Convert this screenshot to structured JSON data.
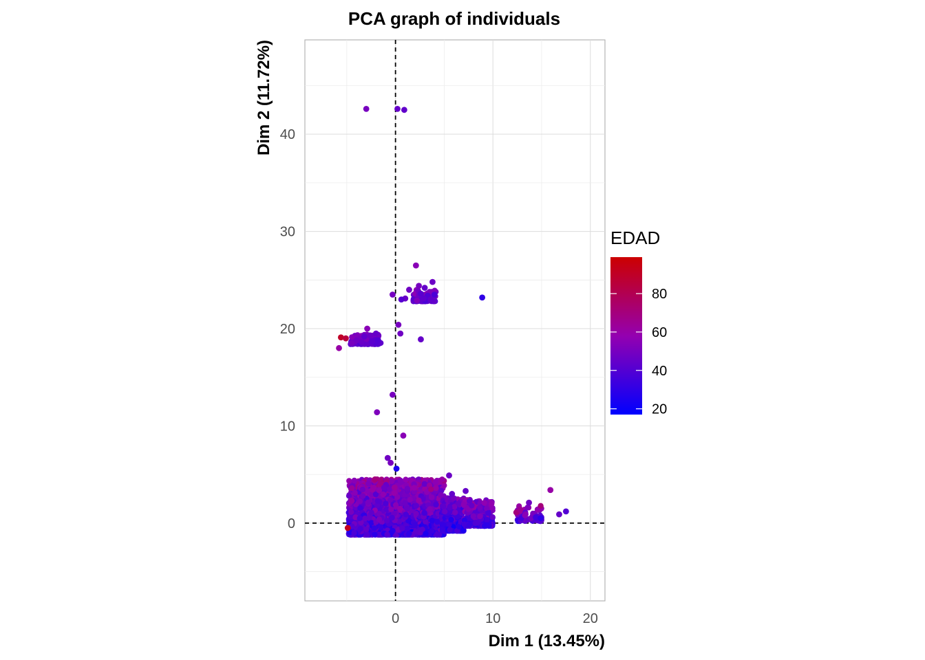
{
  "chart_data": {
    "type": "scatter",
    "title": "PCA graph of individuals",
    "xlabel": "Dim 1 (13.45%)",
    "ylabel": "Dim 2 (11.72%)",
    "xlim": [
      -9.3,
      21.5
    ],
    "ylim": [
      -8,
      49.7
    ],
    "xticks": [
      0,
      10,
      20
    ],
    "yticks": [
      0,
      10,
      20,
      30,
      40
    ],
    "grid": true,
    "reference_lines": {
      "x": 0,
      "y": 0,
      "style": "dashed"
    },
    "color_variable": "EDAD",
    "color_scale": {
      "low": "#0000ff",
      "high": "#cc0000",
      "min": 17,
      "max": 99
    },
    "legend": {
      "title": "EDAD",
      "position": "right",
      "ticks": [
        20,
        40,
        60,
        80
      ]
    },
    "points": [
      {
        "x": -3.0,
        "y": 42.6,
        "edad": 50
      },
      {
        "x": 0.2,
        "y": 42.6,
        "edad": 45
      },
      {
        "x": 0.9,
        "y": 42.5,
        "edad": 44
      },
      {
        "x": 2.1,
        "y": 26.5,
        "edad": 55
      },
      {
        "x": 1.4,
        "y": 24.0,
        "edad": 48
      },
      {
        "x": 2.4,
        "y": 24.4,
        "edad": 50
      },
      {
        "x": 3.0,
        "y": 24.2,
        "edad": 45
      },
      {
        "x": 3.8,
        "y": 24.8,
        "edad": 47
      },
      {
        "x": 2.6,
        "y": 23.6,
        "edad": 42
      },
      {
        "x": 3.3,
        "y": 23.4,
        "edad": 40
      },
      {
        "x": 4.0,
        "y": 23.5,
        "edad": 38
      },
      {
        "x": 2.2,
        "y": 22.9,
        "edad": 52
      },
      {
        "x": 3.6,
        "y": 23.0,
        "edad": 44
      },
      {
        "x": 1.0,
        "y": 23.1,
        "edad": 46
      },
      {
        "x": 0.6,
        "y": 23.0,
        "edad": 41
      },
      {
        "x": -0.3,
        "y": 23.5,
        "edad": 49
      },
      {
        "x": 2.9,
        "y": 23.1,
        "edad": 43
      },
      {
        "x": 8.9,
        "y": 23.2,
        "edad": 30
      },
      {
        "x": -5.6,
        "y": 19.1,
        "edad": 90
      },
      {
        "x": -5.1,
        "y": 19.0,
        "edad": 85
      },
      {
        "x": -5.8,
        "y": 18.0,
        "edad": 60
      },
      {
        "x": -4.5,
        "y": 18.5,
        "edad": 50
      },
      {
        "x": -4.0,
        "y": 18.8,
        "edad": 48
      },
      {
        "x": -3.5,
        "y": 18.6,
        "edad": 46
      },
      {
        "x": -3.2,
        "y": 19.2,
        "edad": 44
      },
      {
        "x": -2.9,
        "y": 20.0,
        "edad": 55
      },
      {
        "x": -2.4,
        "y": 18.7,
        "edad": 42
      },
      {
        "x": -2.0,
        "y": 19.5,
        "edad": 45
      },
      {
        "x": -1.8,
        "y": 18.8,
        "edad": 40
      },
      {
        "x": -2.6,
        "y": 19.3,
        "edad": 47
      },
      {
        "x": 0.3,
        "y": 20.4,
        "edad": 50
      },
      {
        "x": 0.5,
        "y": 19.5,
        "edad": 48
      },
      {
        "x": 2.6,
        "y": 18.9,
        "edad": 45
      },
      {
        "x": -0.3,
        "y": 13.2,
        "edad": 50
      },
      {
        "x": -1.9,
        "y": 11.4,
        "edad": 52
      },
      {
        "x": 0.8,
        "y": 9.0,
        "edad": 55
      },
      {
        "x": -0.8,
        "y": 6.7,
        "edad": 48
      },
      {
        "x": -0.5,
        "y": 6.2,
        "edad": 50
      },
      {
        "x": 0.1,
        "y": 5.6,
        "edad": 25
      },
      {
        "x": 5.5,
        "y": 4.9,
        "edad": 47
      },
      {
        "x": 5.8,
        "y": 3.0,
        "edad": 45
      },
      {
        "x": 7.2,
        "y": 3.3,
        "edad": 45
      },
      {
        "x": 15.9,
        "y": 3.4,
        "edad": 60
      },
      {
        "x": 13.7,
        "y": 2.1,
        "edad": 48
      },
      {
        "x": 17.5,
        "y": 1.2,
        "edad": 40
      },
      {
        "x": 16.8,
        "y": 0.9,
        "edad": 45
      },
      {
        "x": 12.4,
        "y": 1.1,
        "edad": 70
      },
      {
        "x": 12.8,
        "y": 1.4,
        "edad": 65
      },
      {
        "x": 13.3,
        "y": 0.8,
        "edad": 55
      },
      {
        "x": 14.4,
        "y": 0.6,
        "edad": 35
      },
      {
        "x": 14.9,
        "y": 0.5,
        "edad": 30
      },
      {
        "x": -4.9,
        "y": -0.5,
        "edad": 92
      },
      {
        "x": -4.5,
        "y": 2.3,
        "edad": 60
      },
      {
        "x": -2.1,
        "y": 4.5,
        "edad": 70
      }
    ],
    "clusters": [
      {
        "x_range": [
          -4.8,
          5.0
        ],
        "y_range": [
          -1.2,
          4.5
        ],
        "n": 2400,
        "edad_range": [
          18,
          75
        ]
      },
      {
        "x_range": [
          4.8,
          7.0
        ],
        "y_range": [
          -0.8,
          2.6
        ],
        "n": 500,
        "edad_range": [
          18,
          60
        ]
      },
      {
        "x_range": [
          7.0,
          10.0
        ],
        "y_range": [
          -0.3,
          2.4
        ],
        "n": 300,
        "edad_range": [
          20,
          70
        ]
      },
      {
        "x_range": [
          12.5,
          15.0
        ],
        "y_range": [
          0.2,
          1.8
        ],
        "n": 60,
        "edad_range": [
          25,
          75
        ]
      },
      {
        "x_range": [
          -4.6,
          -1.5
        ],
        "y_range": [
          18.4,
          19.4
        ],
        "n": 120,
        "edad_range": [
          35,
          60
        ]
      },
      {
        "x_range": [
          1.8,
          4.2
        ],
        "y_range": [
          22.8,
          24.0
        ],
        "n": 90,
        "edad_range": [
          35,
          60
        ]
      }
    ]
  }
}
